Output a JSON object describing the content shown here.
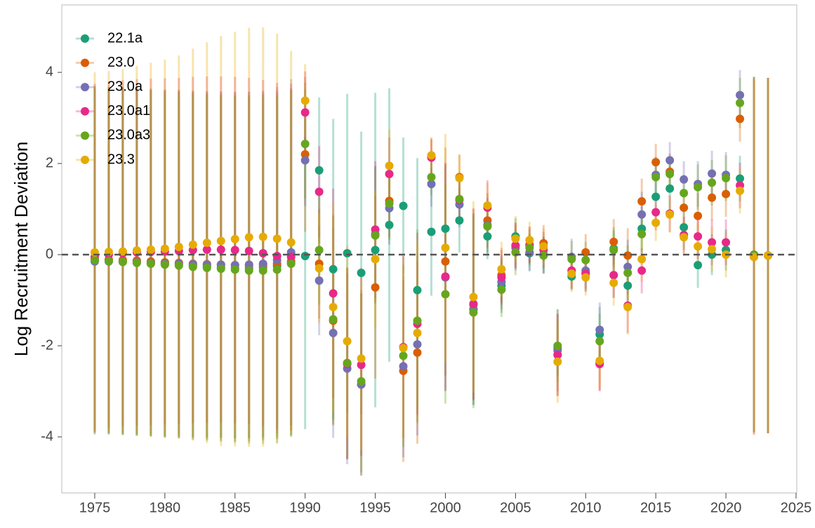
{
  "chart_data": {
    "type": "errorbar-scatter",
    "y_label": "Log Recruitment Deviation",
    "x": [
      1975,
      1976,
      1977,
      1978,
      1979,
      1980,
      1981,
      1982,
      1983,
      1984,
      1985,
      1986,
      1987,
      1988,
      1989,
      1990,
      1991,
      1992,
      1993,
      1994,
      1995,
      1996,
      1997,
      1998,
      1999,
      2000,
      2001,
      2002,
      2003,
      2004,
      2005,
      2006,
      2007,
      2008,
      2009,
      2010,
      2011,
      2012,
      2013,
      2014,
      2015,
      2016,
      2017,
      2018,
      2019,
      2020,
      2021,
      2022,
      2023
    ],
    "xlim": [
      1972.65,
      2025.05
    ],
    "xticks": [
      1975,
      1980,
      1985,
      1990,
      1995,
      2000,
      2005,
      2010,
      2015,
      2020,
      2025
    ],
    "ylim": [
      -5.23,
      5.48
    ],
    "yticks": [
      -4,
      -2,
      0,
      2,
      4
    ],
    "reference_line": 0,
    "legend": "top-left",
    "grid": false,
    "series": [
      {
        "name": "22.1a",
        "color": "#1b9e77",
        "values": [
          -0.1,
          -0.12,
          -0.14,
          -0.16,
          -0.18,
          -0.2,
          -0.22,
          -0.24,
          -0.26,
          -0.28,
          -0.3,
          -0.3,
          -0.28,
          -0.25,
          -0.18,
          -0.03,
          1.85,
          -0.32,
          0.03,
          -0.4,
          0.1,
          0.65,
          1.07,
          -0.78,
          0.5,
          0.57,
          0.75,
          -1.2,
          0.4,
          -0.68,
          0.4,
          0.03,
          -0.02,
          -2.05,
          -0.48,
          -0.4,
          -1.75,
          0.13,
          -0.68,
          0.57,
          1.27,
          1.45,
          0.6,
          -0.23,
          0.0,
          0.1,
          1.67,
          null,
          null
        ],
        "errors": [
          3.8,
          3.8,
          3.8,
          3.8,
          3.8,
          3.8,
          3.8,
          3.8,
          3.8,
          3.8,
          3.8,
          3.8,
          3.8,
          3.8,
          3.8,
          3.8,
          1.6,
          3.3,
          3.5,
          3.1,
          3.45,
          3.0,
          1.5,
          2.9,
          1.4,
          1.4,
          0.7,
          2.1,
          0.5,
          0.6,
          0.4,
          0.4,
          0.4,
          0.6,
          0.3,
          0.4,
          0.6,
          0.4,
          0.5,
          0.5,
          0.5,
          0.5,
          0.5,
          0.5,
          0.45,
          0.45,
          0.5,
          null,
          null
        ]
      },
      {
        "name": "23.0",
        "color": "#d95f02",
        "values": [
          -0.1,
          -0.11,
          -0.12,
          -0.13,
          -0.15,
          -0.17,
          -0.18,
          -0.2,
          -0.21,
          -0.22,
          -0.23,
          -0.24,
          -0.23,
          -0.2,
          -0.15,
          2.2,
          -0.2,
          -1.45,
          -2.38,
          -2.85,
          -0.72,
          1.18,
          -2.55,
          -2.15,
          2.15,
          -0.15,
          1.7,
          -1.1,
          0.75,
          -0.45,
          0.2,
          0.2,
          0.25,
          -2.2,
          -0.35,
          0.05,
          -2.38,
          0.28,
          -0.02,
          1.17,
          2.03,
          1.82,
          1.03,
          0.85,
          1.25,
          1.33,
          2.98,
          0.0,
          -0.02
        ],
        "errors": [
          3.8,
          3.8,
          3.8,
          3.8,
          3.8,
          3.8,
          3.8,
          3.8,
          3.8,
          3.8,
          3.8,
          3.8,
          3.8,
          3.8,
          3.8,
          1.7,
          1.2,
          2.3,
          2.1,
          2.0,
          2.0,
          0.8,
          2.0,
          2.0,
          0.4,
          2.5,
          0.5,
          2.1,
          0.6,
          0.6,
          0.5,
          0.4,
          0.4,
          0.9,
          0.4,
          0.4,
          0.6,
          0.5,
          0.6,
          0.5,
          0.4,
          0.4,
          0.4,
          0.5,
          0.5,
          0.5,
          0.5,
          3.9,
          3.9
        ]
      },
      {
        "name": "23.0a",
        "color": "#7570b3",
        "values": [
          -0.15,
          -0.15,
          -0.16,
          -0.17,
          -0.18,
          -0.2,
          -0.2,
          -0.21,
          -0.22,
          -0.22,
          -0.23,
          -0.22,
          -0.2,
          -0.12,
          0.05,
          2.07,
          -0.57,
          -1.72,
          -2.5,
          -2.85,
          0.45,
          1.02,
          -2.45,
          -1.97,
          1.55,
          -0.5,
          1.1,
          -1.2,
          0.65,
          -0.6,
          0.15,
          0.05,
          0.0,
          -2.1,
          -0.05,
          -0.35,
          -1.65,
          -0.45,
          -0.27,
          0.88,
          1.75,
          2.07,
          1.65,
          1.55,
          1.78,
          1.75,
          3.5,
          0.0,
          -0.02
        ],
        "errors": [
          3.8,
          3.8,
          3.8,
          3.8,
          3.8,
          3.8,
          3.8,
          3.8,
          3.8,
          3.8,
          3.8,
          3.8,
          3.8,
          3.8,
          3.8,
          1.0,
          1.2,
          2.3,
          2.1,
          2.0,
          1.5,
          0.8,
          2.0,
          2.0,
          0.5,
          2.5,
          0.5,
          2.1,
          0.6,
          0.6,
          0.5,
          0.4,
          0.4,
          0.9,
          0.4,
          0.4,
          0.6,
          0.5,
          0.6,
          0.5,
          0.4,
          0.4,
          0.4,
          0.5,
          0.5,
          0.5,
          0.55,
          3.9,
          3.9
        ]
      },
      {
        "name": "23.0a1",
        "color": "#e7298a",
        "values": [
          -0.05,
          0.0,
          0.03,
          0.05,
          0.06,
          0.07,
          0.08,
          0.1,
          0.11,
          0.11,
          0.1,
          0.08,
          0.03,
          -0.03,
          -0.05,
          3.12,
          1.38,
          -0.85,
          -2.4,
          -2.42,
          0.55,
          1.77,
          -2.03,
          -1.52,
          2.13,
          -0.48,
          1.2,
          -1.08,
          1.03,
          -0.5,
          0.2,
          0.22,
          0.1,
          -2.2,
          -0.35,
          -0.42,
          -2.4,
          -0.45,
          -1.12,
          -0.35,
          0.93,
          0.9,
          0.43,
          0.4,
          0.27,
          0.27,
          1.52,
          -0.05,
          -0.02
        ],
        "errors": [
          3.8,
          3.8,
          3.8,
          3.8,
          3.8,
          3.8,
          3.8,
          3.8,
          3.8,
          3.8,
          3.8,
          3.8,
          3.8,
          3.8,
          3.8,
          0.9,
          1.0,
          2.3,
          2.1,
          2.0,
          1.5,
          0.8,
          2.0,
          2.0,
          0.4,
          2.5,
          0.5,
          2.1,
          0.6,
          0.6,
          0.5,
          0.4,
          0.4,
          0.9,
          0.4,
          0.4,
          0.6,
          0.5,
          0.6,
          0.5,
          0.4,
          0.4,
          0.4,
          0.5,
          0.5,
          0.5,
          0.5,
          3.9,
          3.9
        ]
      },
      {
        "name": "23.0a3",
        "color": "#66a61e",
        "values": [
          -0.12,
          -0.14,
          -0.16,
          -0.18,
          -0.2,
          -0.22,
          -0.24,
          -0.27,
          -0.29,
          -0.31,
          -0.33,
          -0.35,
          -0.35,
          -0.33,
          -0.2,
          2.43,
          0.1,
          -1.42,
          -2.38,
          -2.78,
          0.42,
          1.12,
          -2.22,
          -1.45,
          1.7,
          -0.87,
          1.22,
          -1.27,
          0.62,
          -0.77,
          0.05,
          0.15,
          -0.02,
          -2.0,
          -0.1,
          -0.12,
          -1.9,
          0.1,
          -0.4,
          0.45,
          1.7,
          1.77,
          1.35,
          1.48,
          1.58,
          1.68,
          3.33,
          0.0,
          -0.02
        ],
        "errors": [
          3.8,
          3.8,
          3.8,
          3.8,
          3.8,
          3.8,
          3.8,
          3.8,
          3.8,
          3.8,
          3.8,
          3.8,
          3.8,
          3.8,
          3.8,
          1.2,
          1.2,
          2.3,
          2.1,
          2.0,
          1.5,
          0.8,
          2.0,
          2.0,
          0.4,
          2.4,
          0.5,
          2.1,
          0.6,
          0.6,
          0.5,
          0.4,
          0.4,
          0.8,
          0.4,
          0.4,
          0.6,
          0.5,
          0.6,
          0.5,
          0.4,
          0.4,
          0.4,
          0.5,
          0.5,
          0.5,
          0.55,
          3.9,
          3.9
        ]
      },
      {
        "name": "23.3",
        "color": "#e6ab02",
        "values": [
          0.05,
          0.06,
          0.07,
          0.09,
          0.11,
          0.13,
          0.17,
          0.22,
          0.26,
          0.3,
          0.34,
          0.38,
          0.39,
          0.35,
          0.27,
          3.38,
          -0.3,
          -1.15,
          -1.9,
          -2.28,
          -0.1,
          1.95,
          -2.05,
          -1.72,
          2.18,
          0.15,
          1.68,
          -0.93,
          1.08,
          -0.32,
          0.35,
          0.32,
          0.18,
          -2.35,
          -0.42,
          -0.5,
          -2.33,
          -0.62,
          -1.15,
          -0.1,
          0.7,
          0.88,
          0.38,
          0.18,
          0.12,
          0.0,
          1.4,
          -0.05,
          -0.02
        ],
        "errors": [
          3.95,
          3.97,
          4.0,
          4.05,
          4.1,
          4.15,
          4.2,
          4.3,
          4.4,
          4.5,
          4.55,
          4.6,
          4.6,
          4.5,
          4.2,
          0.8,
          1.2,
          2.3,
          2.1,
          2.0,
          1.5,
          0.8,
          2.0,
          2.0,
          0.4,
          2.5,
          0.5,
          2.1,
          0.5,
          0.6,
          0.5,
          0.4,
          0.4,
          0.9,
          0.4,
          0.4,
          0.6,
          0.5,
          0.6,
          0.5,
          0.4,
          0.4,
          0.4,
          0.5,
          0.5,
          0.5,
          0.5,
          3.9,
          3.9
        ]
      }
    ]
  }
}
